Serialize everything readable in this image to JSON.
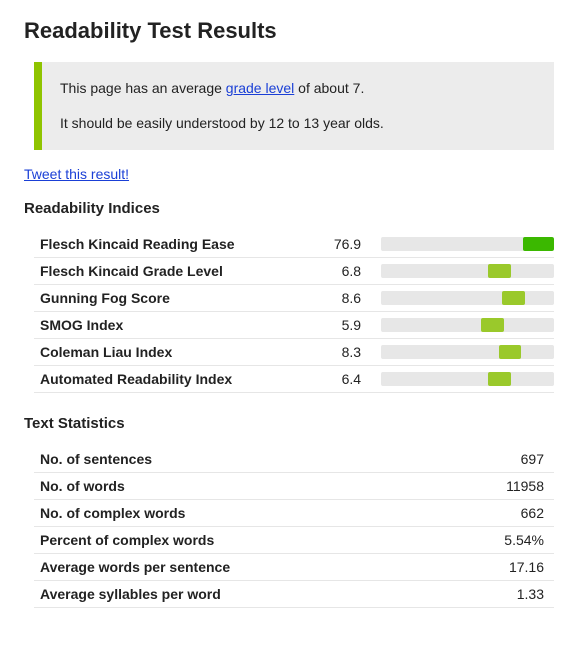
{
  "title": "Readability Test Results",
  "summary": {
    "line1_pre": "This page has an average ",
    "line1_link": "grade level",
    "line1_post": " of about 7.",
    "line2": "It should be easily understood by 12 to 13 year olds."
  },
  "tweet_label": "Tweet this result!",
  "indices_heading": "Readability Indices",
  "indices": [
    {
      "name": "Flesch Kincaid Reading Ease",
      "value": "76.9",
      "left_pct": 82,
      "width_pct": 18,
      "color": "#3bb800"
    },
    {
      "name": "Flesch Kincaid Grade Level",
      "value": "6.8",
      "left_pct": 62,
      "width_pct": 13,
      "color": "#9ac92b"
    },
    {
      "name": "Gunning Fog Score",
      "value": "8.6",
      "left_pct": 70,
      "width_pct": 13,
      "color": "#9ac92b"
    },
    {
      "name": "SMOG Index",
      "value": "5.9",
      "left_pct": 58,
      "width_pct": 13,
      "color": "#9ac92b"
    },
    {
      "name": "Coleman Liau Index",
      "value": "8.3",
      "left_pct": 68,
      "width_pct": 13,
      "color": "#9ac92b"
    },
    {
      "name": "Automated Readability Index",
      "value": "6.4",
      "left_pct": 62,
      "width_pct": 13,
      "color": "#9ac92b"
    }
  ],
  "stats_heading": "Text Statistics",
  "stats": [
    {
      "name": "No. of sentences",
      "value": "697"
    },
    {
      "name": "No. of words",
      "value": "11958"
    },
    {
      "name": "No. of complex words",
      "value": "662"
    },
    {
      "name": "Percent of complex words",
      "value": "5.54%"
    },
    {
      "name": "Average words per sentence",
      "value": "17.16"
    },
    {
      "name": "Average syllables per word",
      "value": "1.33"
    }
  ],
  "colors": {
    "accent": "#8fc400",
    "link": "#1a3fd6",
    "bar_track": "#e7e7e7",
    "row_border": "#e6e6e6",
    "summary_bg": "#ececec"
  }
}
